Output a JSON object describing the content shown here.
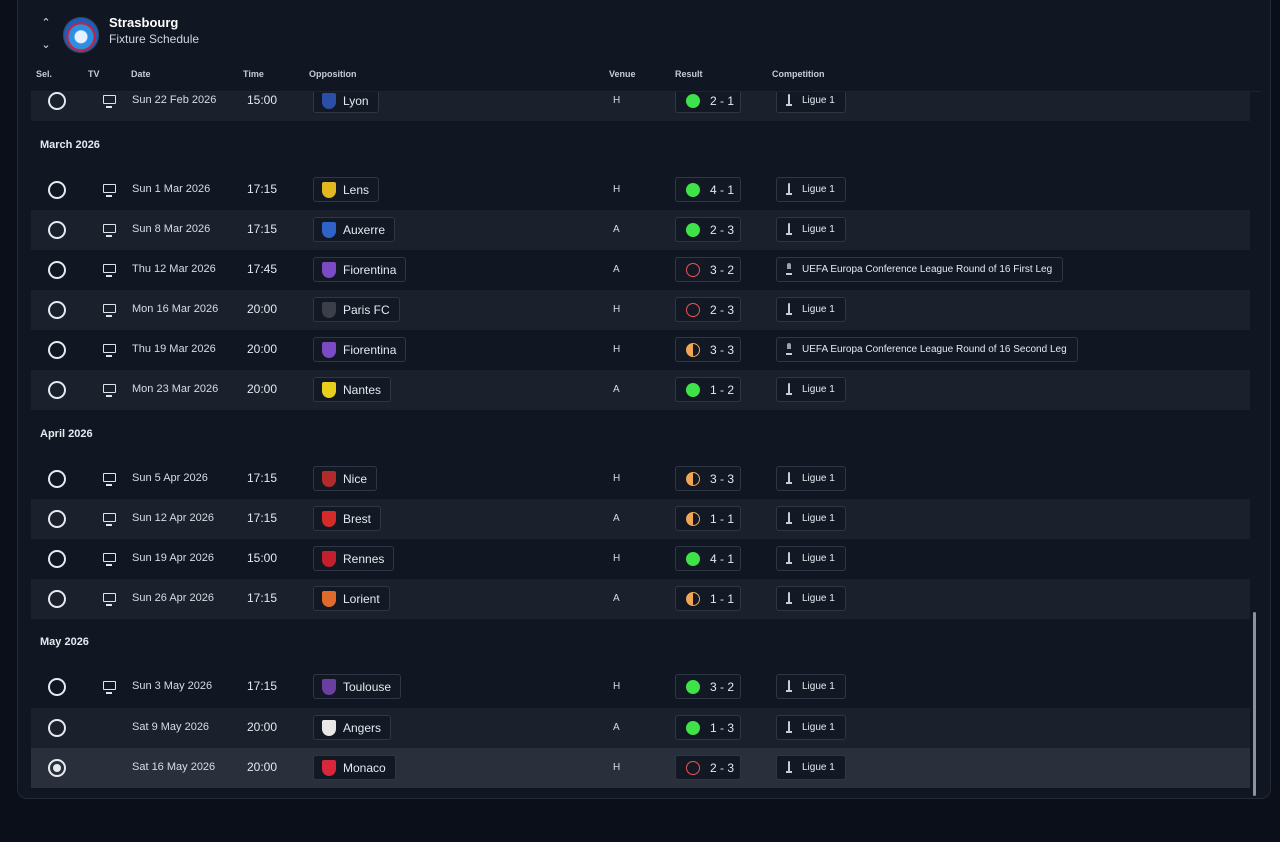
{
  "header": {
    "club_name": "Strasbourg",
    "subtitle": "Fixture Schedule",
    "nav_up_glyph": "⌃",
    "nav_down_glyph": "⌄"
  },
  "columns": {
    "sel": "Sel.",
    "tv": "TV",
    "date": "Date",
    "time": "Time",
    "opposition": "Opposition",
    "venue": "Venue",
    "result": "Result",
    "competition": "Competition"
  },
  "months": {
    "march": "March 2026",
    "april": "April 2026",
    "may": "May 2026"
  },
  "colors": {
    "win": "#3ee34a",
    "loss": "#f05454",
    "draw": "#f0a653"
  },
  "fixtures": [
    {
      "selected": false,
      "tv": true,
      "date": "Sun 22 Feb 2026",
      "time": "15:00",
      "opponent": "Lyon",
      "badge": "#2b4fa8",
      "venue": "H",
      "score": "2 - 1",
      "outcome": "win",
      "competition": "Ligue 1",
      "comp_icon": "ligue1-trophy-icon"
    },
    {
      "selected": false,
      "tv": true,
      "date": "Sun 1 Mar 2026",
      "time": "17:15",
      "opponent": "Lens",
      "badge": "#e3b71f",
      "venue": "H",
      "score": "4 - 1",
      "outcome": "win",
      "competition": "Ligue 1",
      "comp_icon": "ligue1-trophy-icon"
    },
    {
      "selected": false,
      "tv": true,
      "date": "Sun 8 Mar 2026",
      "time": "17:15",
      "opponent": "Auxerre",
      "badge": "#2f63c9",
      "venue": "A",
      "score": "2 - 3",
      "outcome": "win",
      "competition": "Ligue 1",
      "comp_icon": "ligue1-trophy-icon"
    },
    {
      "selected": false,
      "tv": true,
      "date": "Thu 12 Mar 2026",
      "time": "17:45",
      "opponent": "Fiorentina",
      "badge": "#7b4bc4",
      "venue": "A",
      "score": "3 - 2",
      "outcome": "loss",
      "competition": "UEFA Europa Conference League Round of 16  First Leg",
      "comp_icon": "uecl-trophy-icon"
    },
    {
      "selected": false,
      "tv": true,
      "date": "Mon 16 Mar 2026",
      "time": "20:00",
      "opponent": "Paris FC",
      "badge": "#3a3f4a",
      "venue": "H",
      "score": "2 - 3",
      "outcome": "loss",
      "competition": "Ligue 1",
      "comp_icon": "ligue1-trophy-icon"
    },
    {
      "selected": false,
      "tv": true,
      "date": "Thu 19 Mar 2026",
      "time": "20:00",
      "opponent": "Fiorentina",
      "badge": "#7b4bc4",
      "venue": "H",
      "score": "3 - 3",
      "outcome": "draw",
      "competition": "UEFA Europa Conference League Round of 16  Second Leg",
      "comp_icon": "uecl-trophy-icon"
    },
    {
      "selected": false,
      "tv": true,
      "date": "Mon 23 Mar 2026",
      "time": "20:00",
      "opponent": "Nantes",
      "badge": "#e8cf1c",
      "venue": "A",
      "score": "1 - 2",
      "outcome": "win",
      "competition": "Ligue 1",
      "comp_icon": "ligue1-trophy-icon"
    },
    {
      "selected": false,
      "tv": true,
      "date": "Sun 5 Apr 2026",
      "time": "17:15",
      "opponent": "Nice",
      "badge": "#b32a2a",
      "venue": "H",
      "score": "3 - 3",
      "outcome": "draw",
      "competition": "Ligue 1",
      "comp_icon": "ligue1-trophy-icon"
    },
    {
      "selected": false,
      "tv": true,
      "date": "Sun 12 Apr 2026",
      "time": "17:15",
      "opponent": "Brest",
      "badge": "#d42a2a",
      "venue": "A",
      "score": "1 - 1",
      "outcome": "draw",
      "competition": "Ligue 1",
      "comp_icon": "ligue1-trophy-icon"
    },
    {
      "selected": false,
      "tv": true,
      "date": "Sun 19 Apr 2026",
      "time": "15:00",
      "opponent": "Rennes",
      "badge": "#c2202c",
      "venue": "H",
      "score": "4 - 1",
      "outcome": "win",
      "competition": "Ligue 1",
      "comp_icon": "ligue1-trophy-icon"
    },
    {
      "selected": false,
      "tv": true,
      "date": "Sun 26 Apr 2026",
      "time": "17:15",
      "opponent": "Lorient",
      "badge": "#e06a2a",
      "venue": "A",
      "score": "1 - 1",
      "outcome": "draw",
      "competition": "Ligue 1",
      "comp_icon": "ligue1-trophy-icon"
    },
    {
      "selected": false,
      "tv": true,
      "date": "Sun 3 May 2026",
      "time": "17:15",
      "opponent": "Toulouse",
      "badge": "#6a3fa0",
      "venue": "H",
      "score": "3 - 2",
      "outcome": "win",
      "competition": "Ligue 1",
      "comp_icon": "ligue1-trophy-icon"
    },
    {
      "selected": false,
      "tv": false,
      "date": "Sat 9 May 2026",
      "time": "20:00",
      "opponent": "Angers",
      "badge": "#e8e8e8",
      "venue": "A",
      "score": "1 - 3",
      "outcome": "win",
      "competition": "Ligue 1",
      "comp_icon": "ligue1-trophy-icon"
    },
    {
      "selected": true,
      "tv": false,
      "date": "Sat 16 May 2026",
      "time": "20:00",
      "opponent": "Monaco",
      "badge": "#d8263a",
      "venue": "H",
      "score": "2 - 3",
      "outcome": "loss",
      "competition": "Ligue 1",
      "comp_icon": "ligue1-trophy-icon"
    }
  ]
}
